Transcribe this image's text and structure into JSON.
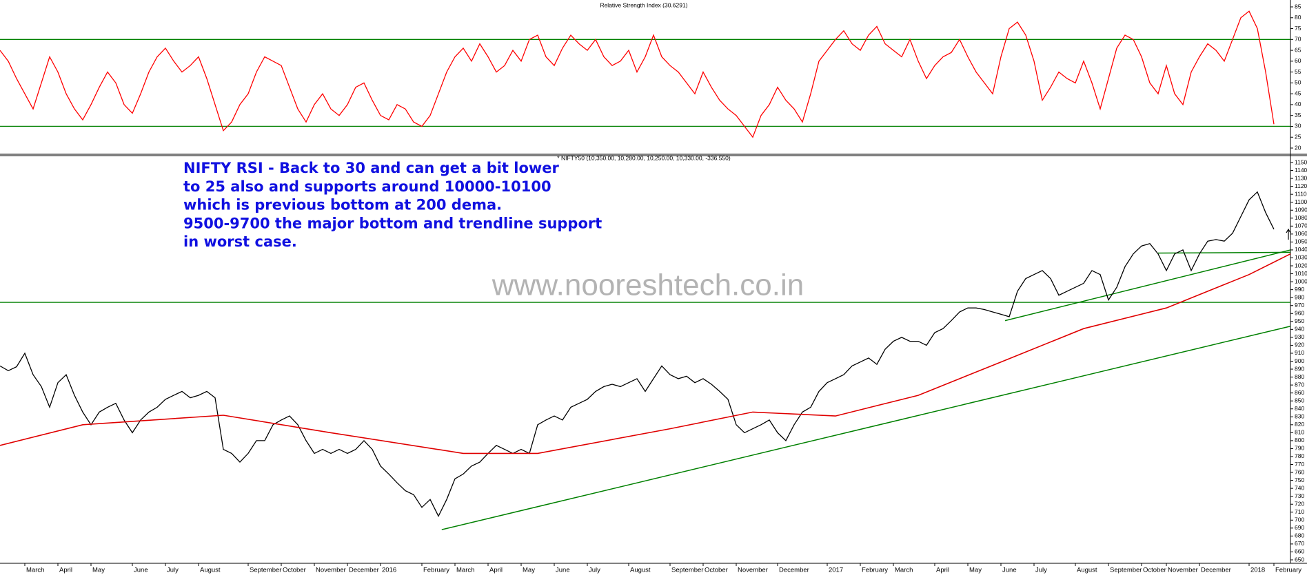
{
  "chart_data": [
    {
      "type": "line",
      "title": "Relative Strength Index (30.6291)",
      "xlim": [
        0,
        156
      ],
      "ylim": [
        20,
        85
      ],
      "yticks": [
        20,
        25,
        30,
        35,
        40,
        45,
        50,
        55,
        60,
        65,
        70,
        75,
        80,
        85
      ],
      "hlines": [
        30,
        70
      ],
      "hline_color": "#008000",
      "x": [
        0,
        1,
        2,
        3,
        4,
        5,
        6,
        7,
        8,
        9,
        10,
        11,
        12,
        13,
        14,
        15,
        16,
        17,
        18,
        19,
        20,
        21,
        22,
        23,
        24,
        25,
        26,
        27,
        28,
        29,
        30,
        31,
        32,
        33,
        34,
        35,
        36,
        37,
        38,
        39,
        40,
        41,
        42,
        43,
        44,
        45,
        46,
        47,
        48,
        49,
        50,
        51,
        52,
        53,
        54,
        55,
        56,
        57,
        58,
        59,
        60,
        61,
        62,
        63,
        64,
        65,
        66,
        67,
        68,
        69,
        70,
        71,
        72,
        73,
        74,
        75,
        76,
        77,
        78,
        79,
        80,
        81,
        82,
        83,
        84,
        85,
        86,
        87,
        88,
        89,
        90,
        91,
        92,
        93,
        94,
        95,
        96,
        97,
        98,
        99,
        100,
        101,
        102,
        103,
        104,
        105,
        106,
        107,
        108,
        109,
        110,
        111,
        112,
        113,
        114,
        115,
        116,
        117,
        118,
        119,
        120,
        121,
        122,
        123,
        124,
        125,
        126,
        127,
        128,
        129,
        130,
        131,
        132,
        133,
        134,
        135,
        136,
        137,
        138,
        139,
        140,
        141,
        142,
        143,
        144,
        145,
        146,
        147,
        148,
        149,
        150,
        151,
        152,
        153,
        154
      ],
      "series": [
        {
          "color": "#ff0000",
          "values": [
            65,
            60,
            52,
            45,
            38,
            50,
            62,
            55,
            45,
            38,
            33,
            40,
            48,
            55,
            50,
            40,
            36,
            45,
            55,
            62,
            66,
            60,
            55,
            58,
            62,
            52,
            40,
            28,
            32,
            40,
            45,
            55,
            62,
            60,
            58,
            48,
            38,
            32,
            40,
            45,
            38,
            35,
            40,
            48,
            50,
            42,
            35,
            33,
            40,
            38,
            32,
            30,
            35,
            45,
            55,
            62,
            66,
            60,
            68,
            62,
            55,
            58,
            65,
            60,
            70,
            72,
            62,
            58,
            66,
            72,
            68,
            65,
            70,
            62,
            58,
            60,
            65,
            55,
            62,
            72,
            62,
            58,
            55,
            50,
            45,
            55,
            48,
            42,
            38,
            35,
            30,
            25,
            35,
            40,
            48,
            42,
            38,
            32,
            45,
            60,
            65,
            70,
            74,
            68,
            65,
            72,
            76,
            68,
            65,
            62,
            70,
            60,
            52,
            58,
            62,
            64,
            70,
            62,
            55,
            50,
            45,
            62,
            75,
            78,
            72,
            60,
            42,
            48,
            55,
            52,
            50,
            60,
            50,
            38,
            52,
            66,
            72,
            70,
            62,
            50,
            45,
            58,
            45,
            40,
            55,
            62,
            68,
            65,
            60,
            70,
            80,
            83,
            75,
            55,
            31
          ]
        }
      ]
    },
    {
      "type": "line",
      "title": "* NIFTY50 (10,350.00, 10,280.00, 10,250.00, 10,330.00, -336.550)",
      "annotation": [
        "NIFTY RSI - Back to 30 and can get a bit lower",
        "to 25 also and supports around 10000-10100",
        "which is previous bottom at 200 dema.",
        "9500-9700 the major bottom and trendline support",
        "in worst case."
      ],
      "watermark": "www.nooreshtech.co.in",
      "xlim": [
        0,
        156
      ],
      "ylim": [
        650,
        1150
      ],
      "yticks": [
        650,
        660,
        670,
        680,
        690,
        700,
        710,
        720,
        730,
        740,
        750,
        760,
        770,
        780,
        790,
        800,
        810,
        820,
        830,
        840,
        850,
        860,
        870,
        880,
        890,
        900,
        910,
        920,
        930,
        940,
        950,
        960,
        970,
        980,
        990,
        1000,
        1010,
        1020,
        1030,
        1040,
        1050,
        1060,
        1070,
        1080,
        1090,
        1100,
        1110,
        1120,
        1130,
        1140,
        1150
      ],
      "xticks": [
        {
          "value": 3,
          "label": "March"
        },
        {
          "value": 7,
          "label": "April"
        },
        {
          "value": 11,
          "label": "May"
        },
        {
          "value": 16,
          "label": "June"
        },
        {
          "value": 20,
          "label": "July"
        },
        {
          "value": 24,
          "label": "August"
        },
        {
          "value": 30,
          "label": "September"
        },
        {
          "value": 34,
          "label": "October"
        },
        {
          "value": 38,
          "label": "November"
        },
        {
          "value": 42,
          "label": "December"
        },
        {
          "value": 46,
          "label": "2016"
        },
        {
          "value": 51,
          "label": "February"
        },
        {
          "value": 55,
          "label": "March"
        },
        {
          "value": 59,
          "label": "April"
        },
        {
          "value": 63,
          "label": "May"
        },
        {
          "value": 67,
          "label": "June"
        },
        {
          "value": 71,
          "label": "July"
        },
        {
          "value": 76,
          "label": "August"
        },
        {
          "value": 81,
          "label": "September"
        },
        {
          "value": 85,
          "label": "October"
        },
        {
          "value": 89,
          "label": "November"
        },
        {
          "value": 94,
          "label": "December"
        },
        {
          "value": 100,
          "label": "2017"
        },
        {
          "value": 104,
          "label": "February"
        },
        {
          "value": 108,
          "label": "March"
        },
        {
          "value": 113,
          "label": "April"
        },
        {
          "value": 117,
          "label": "May"
        },
        {
          "value": 121,
          "label": "June"
        },
        {
          "value": 125,
          "label": "July"
        },
        {
          "value": 130,
          "label": "August"
        },
        {
          "value": 134,
          "label": "September"
        },
        {
          "value": 138,
          "label": "October"
        },
        {
          "value": 141,
          "label": "November"
        },
        {
          "value": 145,
          "label": "December"
        },
        {
          "value": 151,
          "label": "2018"
        },
        {
          "value": 154,
          "label": "February"
        }
      ],
      "hlines": [
        974
      ],
      "hline_color": "#008000",
      "x": [
        0,
        1,
        2,
        3,
        4,
        5,
        6,
        7,
        8,
        9,
        10,
        11,
        12,
        13,
        14,
        15,
        16,
        17,
        18,
        19,
        20,
        21,
        22,
        23,
        24,
        25,
        26,
        27,
        28,
        29,
        30,
        31,
        32,
        33,
        34,
        35,
        36,
        37,
        38,
        39,
        40,
        41,
        42,
        43,
        44,
        45,
        46,
        47,
        48,
        49,
        50,
        51,
        52,
        53,
        54,
        55,
        56,
        57,
        58,
        59,
        60,
        61,
        62,
        63,
        64,
        65,
        66,
        67,
        68,
        69,
        70,
        71,
        72,
        73,
        74,
        75,
        76,
        77,
        78,
        79,
        80,
        81,
        82,
        83,
        84,
        85,
        86,
        87,
        88,
        89,
        90,
        91,
        92,
        93,
        94,
        95,
        96,
        97,
        98,
        99,
        100,
        101,
        102,
        103,
        104,
        105,
        106,
        107,
        108,
        109,
        110,
        111,
        112,
        113,
        114,
        115,
        116,
        117,
        118,
        119,
        120,
        121,
        122,
        123,
        124,
        125,
        126,
        127,
        128,
        129,
        130,
        131,
        132,
        133,
        134,
        135,
        136,
        137,
        138,
        139,
        140,
        141,
        142,
        143,
        144,
        145,
        146,
        147,
        148,
        149,
        150,
        151,
        152,
        153,
        154
      ],
      "series": [
        {
          "color": "#000000",
          "values": [
            894,
            888,
            893,
            910,
            883,
            868,
            842,
            873,
            883,
            857,
            836,
            820,
            836,
            842,
            847,
            826,
            810,
            826,
            836,
            842,
            852,
            857,
            862,
            854,
            857,
            862,
            854,
            789,
            784,
            773,
            784,
            800,
            800,
            820,
            826,
            831,
            820,
            800,
            784,
            789,
            784,
            789,
            784,
            789,
            800,
            789,
            768,
            758,
            747,
            737,
            732,
            716,
            726,
            705,
            726,
            752,
            758,
            768,
            773,
            784,
            794,
            789,
            784,
            789,
            784,
            820,
            826,
            831,
            826,
            842,
            847,
            852,
            862,
            868,
            871,
            868,
            873,
            878,
            862,
            878,
            894,
            883,
            878,
            881,
            873,
            878,
            871,
            862,
            852,
            820,
            810,
            815,
            820,
            826,
            810,
            800,
            820,
            836,
            842,
            862,
            873,
            878,
            883,
            894,
            899,
            904,
            896,
            915,
            925,
            930,
            925,
            925,
            920,
            936,
            941,
            951,
            962,
            967,
            967,
            965,
            962,
            959,
            956,
            988,
            1004,
            1009,
            1014,
            1004,
            983,
            988,
            993,
            998,
            1014,
            1009,
            977,
            993,
            1019,
            1035,
            1045,
            1048,
            1035,
            1014,
            1035,
            1040,
            1014,
            1035,
            1051,
            1053,
            1051,
            1061,
            1082,
            1103,
            1113,
            1087,
            1066
          ]
        },
        {
          "color": "#e00000",
          "x": [
            0,
            10,
            27,
            40,
            56,
            65,
            81,
            91,
            101,
            111,
            121,
            131,
            141,
            151,
            156
          ],
          "values": [
            794,
            820,
            832,
            810,
            784,
            784,
            815,
            836,
            831,
            857,
            899,
            941,
            967,
            1009,
            1035
          ]
        }
      ],
      "trendlines": [
        {
          "color": "#008000",
          "x": [
            53.4,
            156
          ],
          "values": [
            688,
            944
          ]
        },
        {
          "color": "#008000",
          "x": [
            121.5,
            156
          ],
          "values": [
            951,
            1040
          ]
        },
        {
          "color": "#008000",
          "x": [
            140,
            156
          ],
          "values": [
            1036,
            1037
          ]
        }
      ]
    }
  ]
}
